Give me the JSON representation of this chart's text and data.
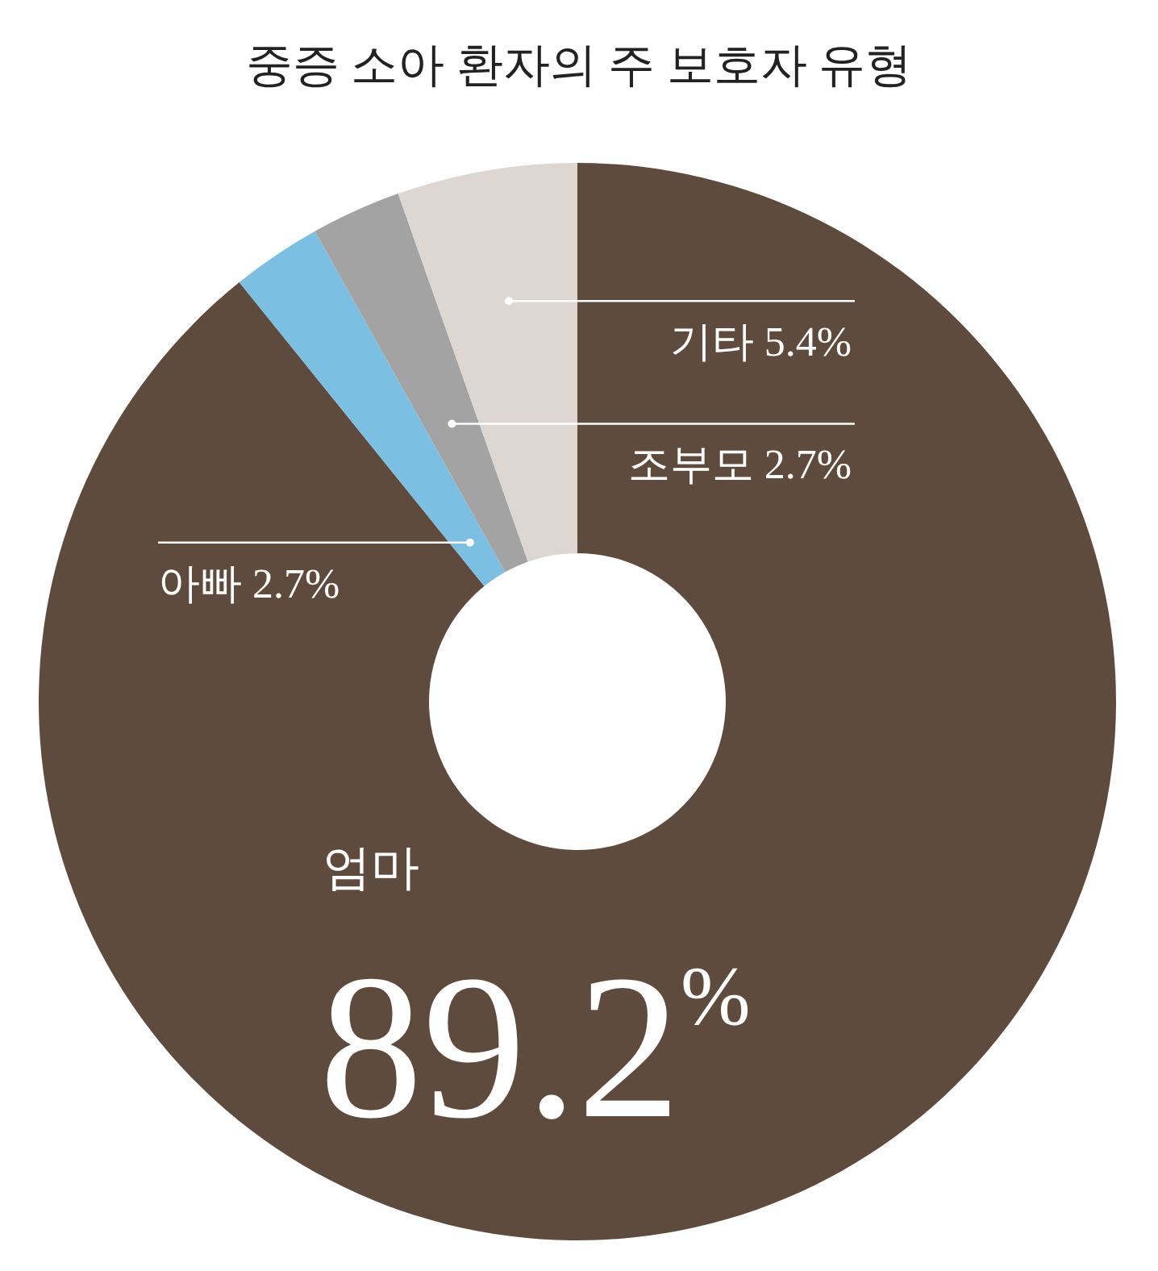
{
  "chart_data": {
    "type": "donut",
    "title": "중증 소아 환자의 주 보호자 유형",
    "categories": [
      "엄마",
      "아빠",
      "조부모",
      "기타"
    ],
    "values": [
      89.2,
      2.7,
      2.7,
      5.4
    ],
    "colors": [
      "#5f4b3e",
      "#7bbfe3",
      "#a3a3a3",
      "#ddd6d1"
    ],
    "value_labels": [
      "89.2$^{%}$",
      "2.7%",
      "2.7%",
      "5.4%"
    ]
  }
}
